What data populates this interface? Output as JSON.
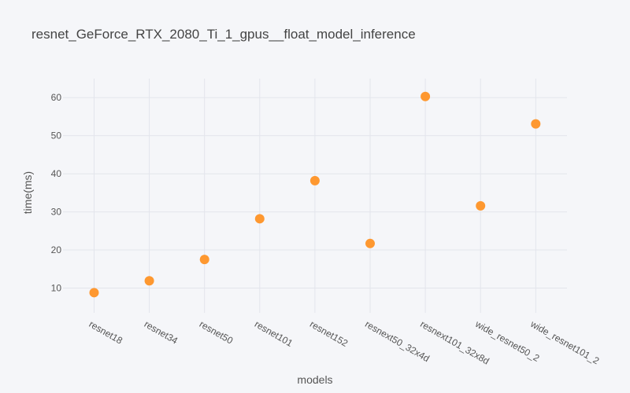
{
  "chart_data": {
    "type": "scatter",
    "title": "resnet_GeForce_RTX_2080_Ti_1_gpus__float_model_inference",
    "xlabel": "models",
    "ylabel": "time(ms)",
    "categories": [
      "resnet18",
      "resnet34",
      "resnet50",
      "resnet101",
      "resnet152",
      "resnext50_32x4d",
      "resnext101_32x8d",
      "wide_resnet50_2",
      "wide_resnet101_2"
    ],
    "values": [
      8.8,
      11.9,
      17.5,
      28.2,
      38.2,
      21.7,
      60.3,
      31.6,
      53.1
    ],
    "yticks": [
      10,
      20,
      30,
      40,
      50,
      60
    ],
    "ylim": [
      3.5,
      65
    ],
    "grid": true,
    "marker_color": "#fe9830",
    "background_color": "#f5f6f9",
    "grid_color": "#e3e5ec"
  }
}
